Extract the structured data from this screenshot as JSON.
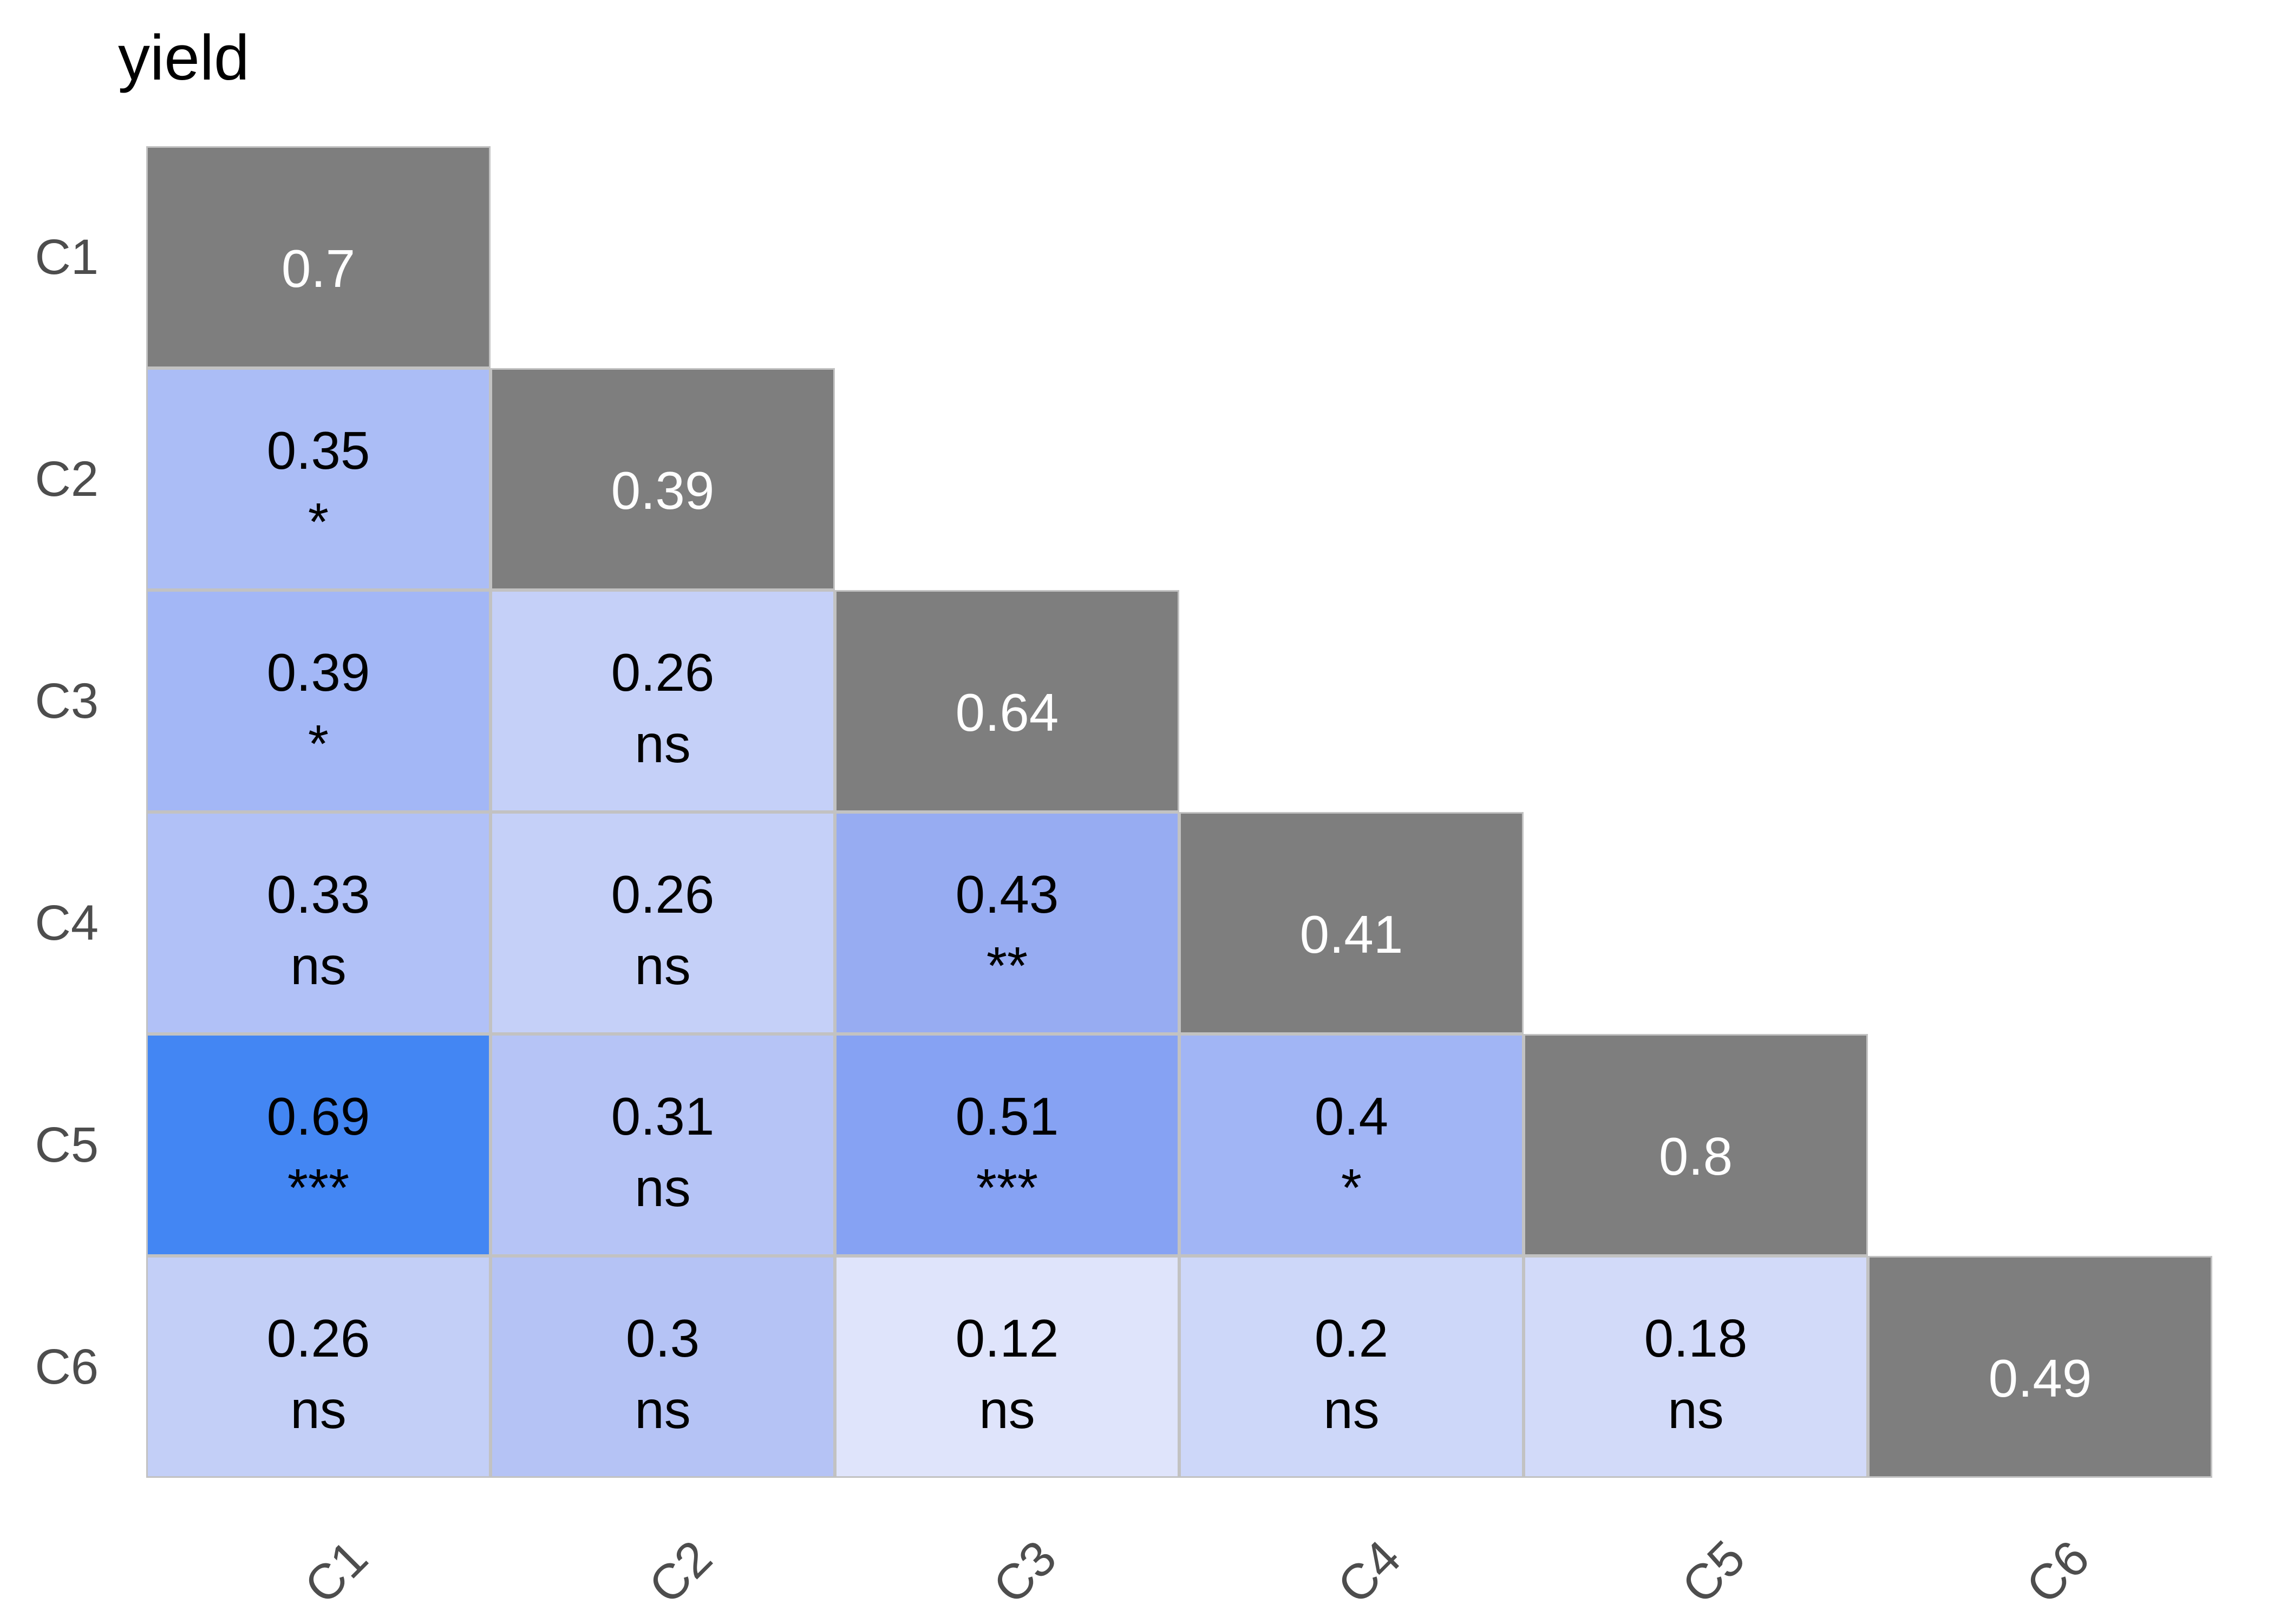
{
  "title": "yield",
  "axes": {
    "x_labels": [
      "C1",
      "C2",
      "C3",
      "C4",
      "C5",
      "C6"
    ],
    "y_labels": [
      "C1",
      "C2",
      "C3",
      "C4",
      "C5",
      "C6"
    ],
    "label_color": "#4d4d4d"
  },
  "colors": {
    "background": "#ffffff",
    "cell_border": "#c2c2c2",
    "diagonal_fill": "#7e7e7e",
    "diagonal_text": "#ffffff",
    "cell_text": "#000000",
    "title_text": "#000000"
  },
  "chart_data": {
    "type": "heatmap",
    "title": "yield",
    "x_categories": [
      "C1",
      "C2",
      "C3",
      "C4",
      "C5",
      "C6"
    ],
    "y_categories": [
      "C1",
      "C2",
      "C3",
      "C4",
      "C5",
      "C6"
    ],
    "diagonal_values": [
      "0.7",
      "0.39",
      "0.64",
      "0.41",
      "0.8",
      "0.49"
    ],
    "diagonal_fill": "#7e7e7e",
    "significance_levels_shown": [
      "ns",
      "*",
      "**",
      "***"
    ],
    "cells": [
      {
        "row": "C2",
        "col": "C1",
        "value": "0.35",
        "sig": "*",
        "fill": "#abbdf6"
      },
      {
        "row": "C3",
        "col": "C1",
        "value": "0.39",
        "sig": "*",
        "fill": "#a3b7f6"
      },
      {
        "row": "C3",
        "col": "C2",
        "value": "0.26",
        "sig": "ns",
        "fill": "#c5d0f8"
      },
      {
        "row": "C4",
        "col": "C1",
        "value": "0.33",
        "sig": "ns",
        "fill": "#b1c1f7"
      },
      {
        "row": "C4",
        "col": "C2",
        "value": "0.26",
        "sig": "ns",
        "fill": "#c5d0f8"
      },
      {
        "row": "C4",
        "col": "C3",
        "value": "0.43",
        "sig": "**",
        "fill": "#97acf2"
      },
      {
        "row": "C5",
        "col": "C1",
        "value": "0.69",
        "sig": "***",
        "fill": "#4386f3"
      },
      {
        "row": "C5",
        "col": "C2",
        "value": "0.31",
        "sig": "ns",
        "fill": "#b6c4f6"
      },
      {
        "row": "C5",
        "col": "C3",
        "value": "0.51",
        "sig": "***",
        "fill": "#86a2f3"
      },
      {
        "row": "C5",
        "col": "C4",
        "value": "0.4",
        "sig": "*",
        "fill": "#a1b5f5"
      },
      {
        "row": "C6",
        "col": "C1",
        "value": "0.26",
        "sig": "ns",
        "fill": "#c3cff7"
      },
      {
        "row": "C6",
        "col": "C2",
        "value": "0.3",
        "sig": "ns",
        "fill": "#b5c3f5"
      },
      {
        "row": "C6",
        "col": "C3",
        "value": "0.12",
        "sig": "ns",
        "fill": "#dfe4fb"
      },
      {
        "row": "C6",
        "col": "C4",
        "value": "0.2",
        "sig": "ns",
        "fill": "#cdd7f9"
      },
      {
        "row": "C6",
        "col": "C5",
        "value": "0.18",
        "sig": "ns",
        "fill": "#d2daf9"
      }
    ]
  }
}
